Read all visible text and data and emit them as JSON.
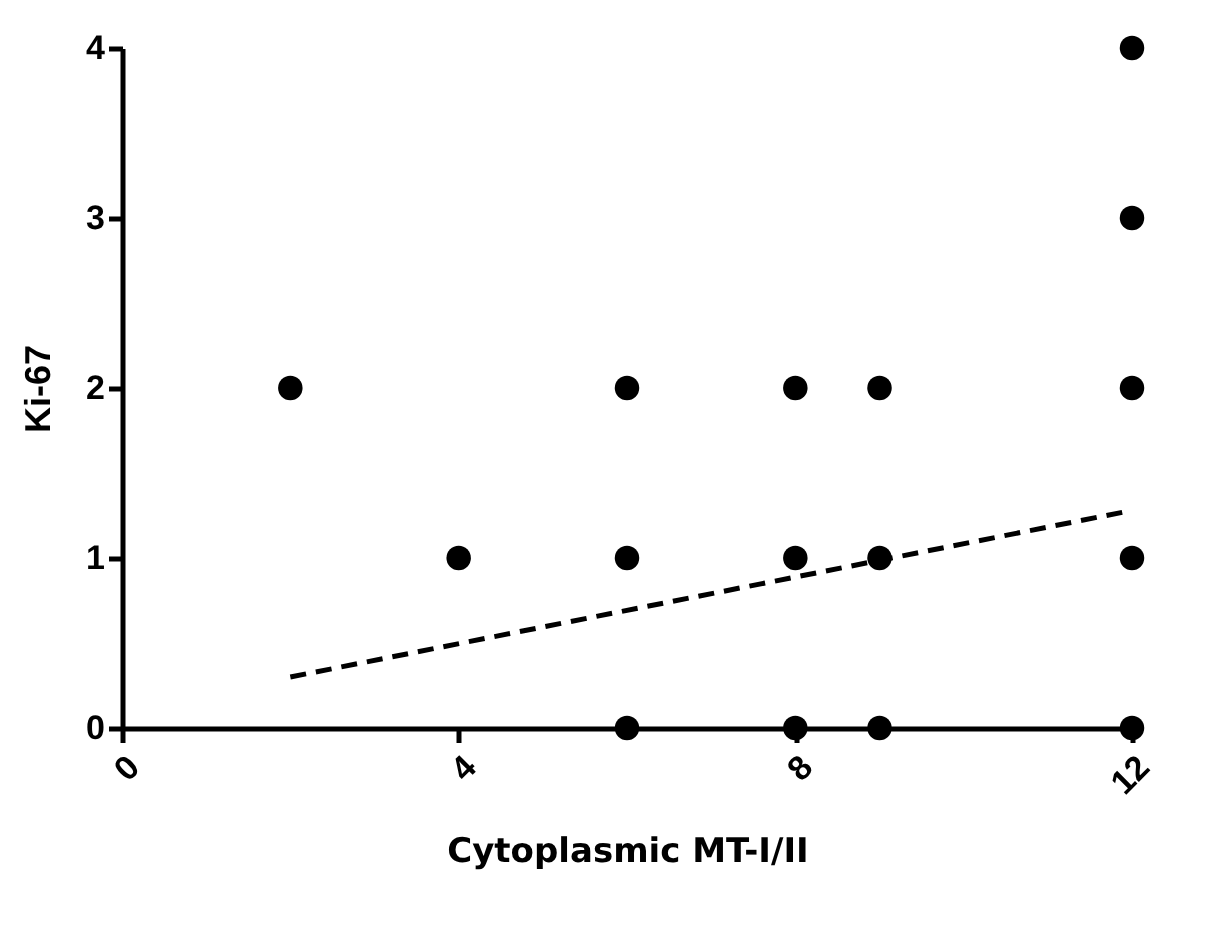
{
  "chart_data": {
    "type": "scatter",
    "xlabel": "Cytoplasmic MT-I/II",
    "ylabel": "Ki-67",
    "xlim": [
      0,
      12
    ],
    "xticks": [
      0,
      4,
      8,
      12
    ],
    "ylim": [
      0,
      4
    ],
    "yticks": [
      0,
      1,
      2,
      3,
      4
    ],
    "grid": false,
    "series": [
      {
        "marker": "circle",
        "color": "#000000",
        "x": [
          2,
          4,
          6,
          6,
          6,
          8,
          8,
          8,
          9,
          9,
          9,
          12,
          12,
          12,
          12,
          12
        ],
        "values": [
          2,
          1,
          2,
          1,
          0,
          2,
          1,
          0,
          2,
          1,
          0,
          4,
          3,
          2,
          1,
          0
        ]
      },
      {
        "type": "line",
        "color": "#000000",
        "line_style": "dashed",
        "x": [
          2,
          12
        ],
        "values": [
          0.3,
          1.28
        ]
      }
    ]
  }
}
